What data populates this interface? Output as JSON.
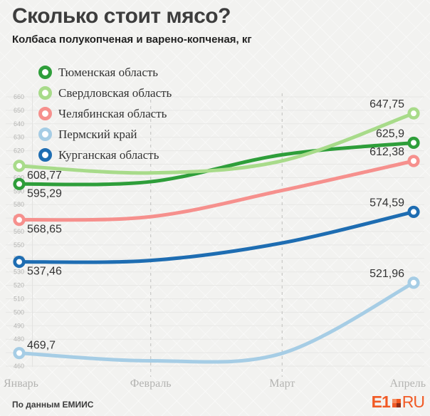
{
  "title": "Сколько стоит мясо?",
  "subtitle": "Колбаса полукопченая и варено-копченая, кг",
  "footer": {
    "source": "По данным ЕМИИС",
    "logo_e1": "E1",
    "logo_ru": "RU"
  },
  "chart_data": {
    "type": "line",
    "x": [
      "Январь",
      "Февраль",
      "Март",
      "Апрель"
    ],
    "ylim": [
      460,
      660
    ],
    "ytick_step": 10,
    "grid": {
      "horizontal": true,
      "vertical_dashed_at": [
        "Февраль",
        "Март"
      ]
    },
    "legend_position": "top-left",
    "mid_values_estimated_from_pixels": true,
    "series": [
      {
        "name": "Тюменская область",
        "color": "#2e9e3a",
        "values": [
          595.29,
          597,
          617,
          625.9
        ],
        "start_label": "595,29",
        "end_label": "625,9",
        "start_label_above": false
      },
      {
        "name": "Свердловская область",
        "color": "#a8db8a",
        "values": [
          608.77,
          603.5,
          612.5,
          647.75
        ],
        "start_label": "608,77",
        "end_label": "647,75",
        "start_label_above": false
      },
      {
        "name": "Челябинская область",
        "color": "#f6908d",
        "values": [
          568.65,
          571,
          590.5,
          612.38
        ],
        "start_label": "568,65",
        "end_label": "612,38",
        "start_label_above": false
      },
      {
        "name": "Пермский край",
        "color": "#a6cde5",
        "values": [
          469.7,
          464,
          469.5,
          521.96
        ],
        "start_label": "469,7",
        "end_label": "521,96",
        "start_label_above": true
      },
      {
        "name": "Курганская область",
        "color": "#1e6db2",
        "values": [
          537.46,
          538.5,
          551.5,
          574.59
        ],
        "start_label": "537,46",
        "end_label": "574,59",
        "start_label_above": false
      }
    ]
  }
}
